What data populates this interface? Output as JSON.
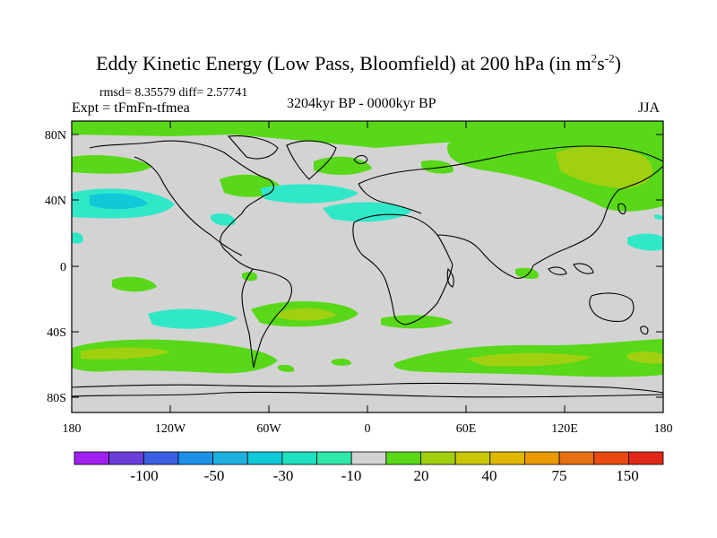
{
  "title_prefix": "Eddy Kinetic Energy (Low Pass, Bloomfield) at 200 hPa (in m",
  "title_sup1": "2",
  "title_mid": "s",
  "title_sup2": "-2",
  "title_suffix": ")",
  "stats": "rmsd= 8.35579  diff= 2.57741",
  "experiment": "Expt = tFmFn-tfmea",
  "period": "3204kyr BP - 0000kyr BP",
  "season": "JJA",
  "lat_ticks": [
    "80N",
    "40N",
    "0",
    "40S",
    "80S"
  ],
  "lon_ticks": [
    "180",
    "120W",
    "60W",
    "0",
    "60E",
    "120E",
    "180"
  ],
  "colorbar": {
    "labels": [
      "-100",
      "-50",
      "-30",
      "-10",
      "20",
      "40",
      "75",
      "150"
    ],
    "colors": [
      "#a020f0",
      "#6a3fd8",
      "#3a5fe0",
      "#1e90e8",
      "#20b0e0",
      "#10c8d8",
      "#20e0c0",
      "#30e8a8",
      "#d3d3d3",
      "#58d818",
      "#a0d010",
      "#c8c808",
      "#e0b800",
      "#e89a00",
      "#e87010",
      "#e84a10",
      "#e02818"
    ]
  },
  "colors": {
    "background": "#d3d3d3",
    "positive_low": "#58d818",
    "positive_mid": "#a0d010",
    "negative_low": "#30e8c8",
    "negative_mid": "#10c8d8",
    "coast": "#000000"
  }
}
